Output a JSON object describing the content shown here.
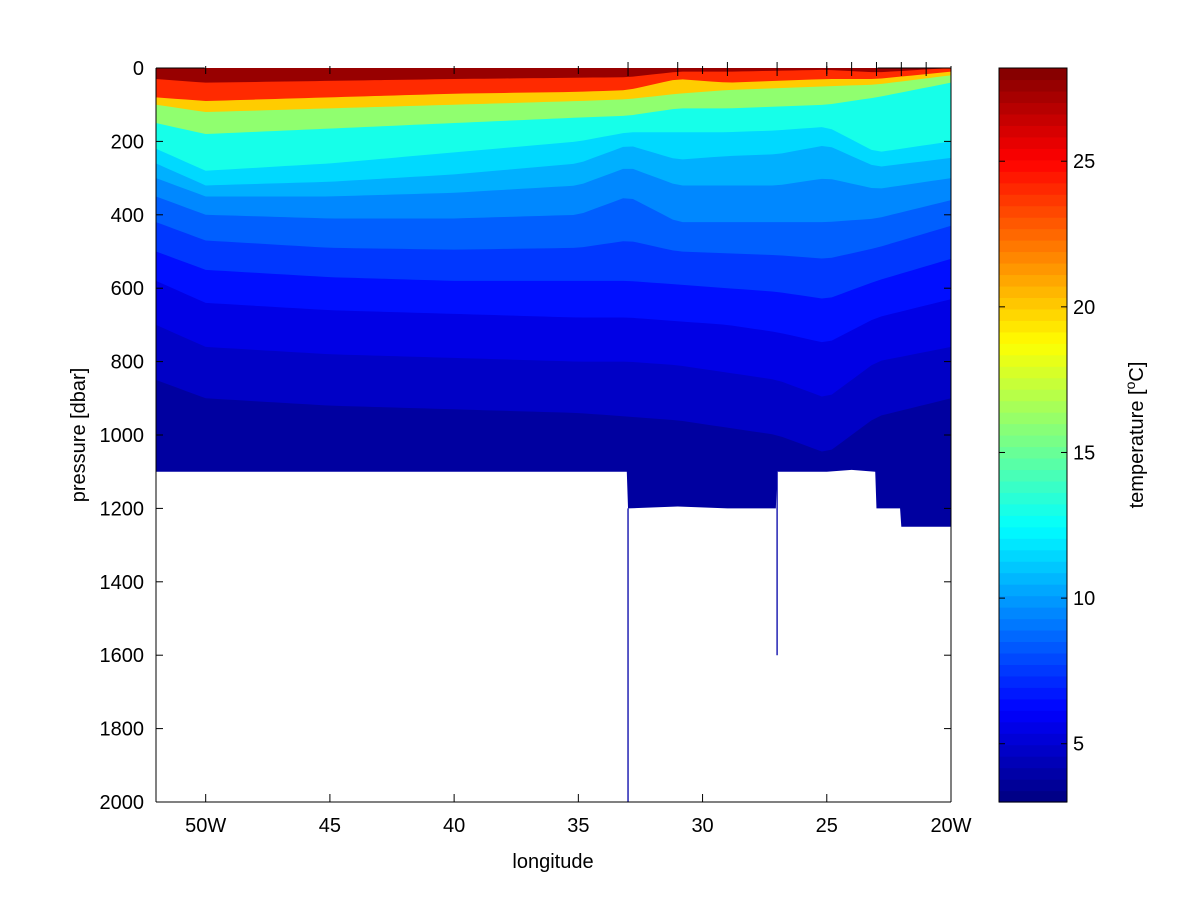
{
  "chart_data": {
    "type": "heatmap",
    "title": "",
    "xlabel": "longitude",
    "ylabel": "pressure [dbar]",
    "xlim": [
      -52,
      -20
    ],
    "ylim": [
      2000,
      0
    ],
    "y_reversed": true,
    "x_ticks": [
      {
        "value": -50,
        "label": "50W"
      },
      {
        "value": -45,
        "label": "45"
      },
      {
        "value": -40,
        "label": "40"
      },
      {
        "value": -35,
        "label": "35"
      },
      {
        "value": -30,
        "label": "30"
      },
      {
        "value": -25,
        "label": "25"
      },
      {
        "value": -20,
        "label": "20W"
      }
    ],
    "y_ticks": [
      {
        "value": 0,
        "label": "0"
      },
      {
        "value": 200,
        "label": "200"
      },
      {
        "value": 400,
        "label": "400"
      },
      {
        "value": 600,
        "label": "600"
      },
      {
        "value": 800,
        "label": "800"
      },
      {
        "value": 1000,
        "label": "1000"
      },
      {
        "value": 1200,
        "label": "1200"
      },
      {
        "value": 1400,
        "label": "1400"
      },
      {
        "value": 1600,
        "label": "1600"
      },
      {
        "value": 1800,
        "label": "1800"
      },
      {
        "value": 2000,
        "label": "2000"
      }
    ],
    "station_longitudes": [
      -33,
      -31,
      -29,
      -27,
      -25,
      -24,
      -23,
      -22,
      -21
    ],
    "data_extent": [
      {
        "lon": -52,
        "max_pressure": 1100
      },
      {
        "lon": -33.05,
        "max_pressure": 1100
      },
      {
        "lon": -33,
        "max_pressure": 1200
      },
      {
        "lon": -31,
        "max_pressure": 1195
      },
      {
        "lon": -29,
        "max_pressure": 1200
      },
      {
        "lon": -27.05,
        "max_pressure": 1200
      },
      {
        "lon": -27,
        "max_pressure": 1100
      },
      {
        "lon": -25,
        "max_pressure": 1100
      },
      {
        "lon": -24,
        "max_pressure": 1095
      },
      {
        "lon": -23.05,
        "max_pressure": 1100
      },
      {
        "lon": -23,
        "max_pressure": 1200
      },
      {
        "lon": -22.05,
        "max_pressure": 1200
      },
      {
        "lon": -22,
        "max_pressure": 1250
      },
      {
        "lon": -20,
        "max_pressure": 1250
      }
    ],
    "cast_lines": [
      {
        "lon": -33,
        "from_pressure": 1200,
        "to_pressure": 2000
      },
      {
        "lon": -27,
        "from_pressure": 1100,
        "to_pressure": 1600
      }
    ],
    "isotherms": [
      {
        "temperature": 26,
        "depths": [
          [
            -52,
            30
          ],
          [
            -50,
            40
          ],
          [
            -40,
            30
          ],
          [
            -33,
            25
          ],
          [
            -31,
            10
          ],
          [
            -29,
            10
          ],
          [
            -25,
            5
          ],
          [
            -23,
            12
          ],
          [
            -20,
            0
          ]
        ]
      },
      {
        "temperature": 22,
        "depths": [
          [
            -52,
            80
          ],
          [
            -50,
            90
          ],
          [
            -45,
            80
          ],
          [
            -40,
            70
          ],
          [
            -35,
            65
          ],
          [
            -33,
            60
          ],
          [
            -31,
            30
          ],
          [
            -29,
            40
          ],
          [
            -27,
            35
          ],
          [
            -25,
            30
          ],
          [
            -23,
            30
          ],
          [
            -20,
            10
          ]
        ]
      },
      {
        "temperature": 18,
        "depths": [
          [
            -52,
            100
          ],
          [
            -50,
            120
          ],
          [
            -45,
            110
          ],
          [
            -40,
            100
          ],
          [
            -35,
            90
          ],
          [
            -33,
            85
          ],
          [
            -31,
            70
          ],
          [
            -29,
            60
          ],
          [
            -27,
            55
          ],
          [
            -25,
            50
          ],
          [
            -23,
            45
          ],
          [
            -20,
            20
          ]
        ]
      },
      {
        "temperature": 14,
        "depths": [
          [
            -52,
            150
          ],
          [
            -50,
            180
          ],
          [
            -45,
            165
          ],
          [
            -40,
            150
          ],
          [
            -35,
            135
          ],
          [
            -33,
            130
          ],
          [
            -31,
            110
          ],
          [
            -29,
            110
          ],
          [
            -27,
            105
          ],
          [
            -25,
            100
          ],
          [
            -23,
            80
          ],
          [
            -20,
            40
          ]
        ]
      },
      {
        "temperature": 12,
        "depths": [
          [
            -52,
            220
          ],
          [
            -50,
            280
          ],
          [
            -45,
            260
          ],
          [
            -40,
            230
          ],
          [
            -35,
            200
          ],
          [
            -33,
            175
          ],
          [
            -31,
            175
          ],
          [
            -29,
            175
          ],
          [
            -27,
            170
          ],
          [
            -25,
            160
          ],
          [
            -23,
            230
          ],
          [
            -20,
            200
          ]
        ]
      },
      {
        "temperature": 11,
        "depths": [
          [
            -52,
            260
          ],
          [
            -50,
            320
          ],
          [
            -45,
            310
          ],
          [
            -40,
            290
          ],
          [
            -35,
            260
          ],
          [
            -33,
            210
          ],
          [
            -31,
            250
          ],
          [
            -29,
            240
          ],
          [
            -27,
            235
          ],
          [
            -25,
            210
          ],
          [
            -23,
            270
          ],
          [
            -20,
            245
          ]
        ]
      },
      {
        "temperature": 10,
        "depths": [
          [
            -52,
            300
          ],
          [
            -50,
            350
          ],
          [
            -45,
            350
          ],
          [
            -40,
            340
          ],
          [
            -35,
            320
          ],
          [
            -33,
            270
          ],
          [
            -31,
            320
          ],
          [
            -29,
            320
          ],
          [
            -27,
            320
          ],
          [
            -25,
            300
          ],
          [
            -23,
            330
          ],
          [
            -20,
            300
          ]
        ]
      },
      {
        "temperature": 9,
        "depths": [
          [
            -52,
            350
          ],
          [
            -50,
            400
          ],
          [
            -45,
            410
          ],
          [
            -40,
            410
          ],
          [
            -35,
            400
          ],
          [
            -33,
            350
          ],
          [
            -31,
            420
          ],
          [
            -29,
            420
          ],
          [
            -27,
            420
          ],
          [
            -25,
            420
          ],
          [
            -23,
            410
          ],
          [
            -20,
            360
          ]
        ]
      },
      {
        "temperature": 8,
        "depths": [
          [
            -52,
            420
          ],
          [
            -50,
            470
          ],
          [
            -45,
            490
          ],
          [
            -40,
            495
          ],
          [
            -35,
            490
          ],
          [
            -33,
            470
          ],
          [
            -31,
            500
          ],
          [
            -29,
            505
          ],
          [
            -27,
            510
          ],
          [
            -25,
            520
          ],
          [
            -23,
            490
          ],
          [
            -20,
            430
          ]
        ]
      },
      {
        "temperature": 7,
        "depths": [
          [
            -52,
            500
          ],
          [
            -50,
            550
          ],
          [
            -45,
            570
          ],
          [
            -40,
            580
          ],
          [
            -35,
            580
          ],
          [
            -33,
            580
          ],
          [
            -31,
            590
          ],
          [
            -29,
            600
          ],
          [
            -27,
            610
          ],
          [
            -25,
            630
          ],
          [
            -23,
            580
          ],
          [
            -20,
            520
          ]
        ]
      },
      {
        "temperature": 6,
        "depths": [
          [
            -52,
            580
          ],
          [
            -50,
            640
          ],
          [
            -45,
            660
          ],
          [
            -40,
            670
          ],
          [
            -35,
            680
          ],
          [
            -33,
            680
          ],
          [
            -31,
            690
          ],
          [
            -29,
            700
          ],
          [
            -27,
            720
          ],
          [
            -25,
            750
          ],
          [
            -23,
            680
          ],
          [
            -20,
            630
          ]
        ]
      },
      {
        "temperature": 5,
        "depths": [
          [
            -52,
            700
          ],
          [
            -50,
            760
          ],
          [
            -45,
            780
          ],
          [
            -40,
            790
          ],
          [
            -35,
            800
          ],
          [
            -33,
            800
          ],
          [
            -31,
            810
          ],
          [
            -29,
            830
          ],
          [
            -27,
            850
          ],
          [
            -25,
            900
          ],
          [
            -23,
            800
          ],
          [
            -20,
            760
          ]
        ]
      },
      {
        "temperature": 4.5,
        "depths": [
          [
            -52,
            850
          ],
          [
            -50,
            900
          ],
          [
            -45,
            920
          ],
          [
            -40,
            930
          ],
          [
            -35,
            940
          ],
          [
            -33,
            950
          ],
          [
            -31,
            960
          ],
          [
            -29,
            980
          ],
          [
            -27,
            1000
          ],
          [
            -25,
            1050
          ],
          [
            -23,
            950
          ],
          [
            -20,
            900
          ]
        ]
      }
    ],
    "colorbar": {
      "label_prefix": "temperature [",
      "label_superscript": "o",
      "label_suffix": "C]",
      "range": [
        3,
        28.2
      ],
      "ticks": [
        {
          "value": 5,
          "label": "5"
        },
        {
          "value": 10,
          "label": "10"
        },
        {
          "value": 15,
          "label": "15"
        },
        {
          "value": 20,
          "label": "20"
        },
        {
          "value": 25,
          "label": "25"
        }
      ],
      "colormap": "jet"
    },
    "grid": false
  }
}
